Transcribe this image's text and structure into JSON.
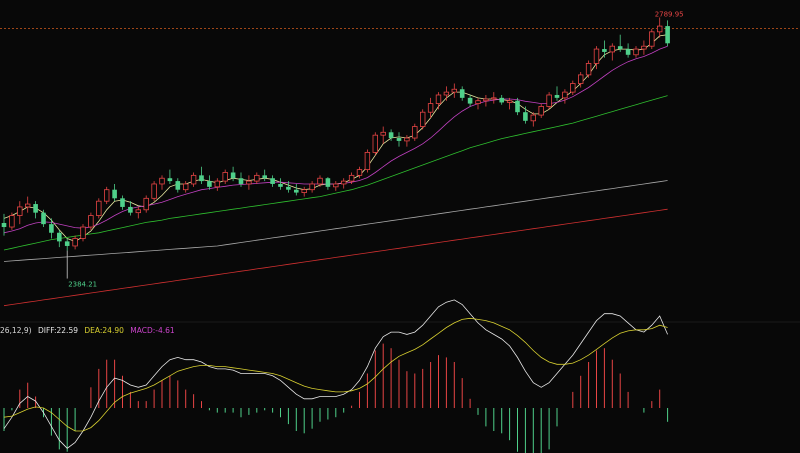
{
  "chart_data": [
    {
      "type": "candlestick",
      "panel": "price",
      "annotations": {
        "high_label": "2789.95",
        "low_label": "2384.21"
      },
      "reference_line_value": 2771,
      "y_range_approx": [
        2270,
        2810
      ],
      "candles": [
        [
          2432,
          2448,
          2410,
          2425
        ],
        [
          2425,
          2450,
          2420,
          2445
        ],
        [
          2445,
          2470,
          2430,
          2460
        ],
        [
          2460,
          2478,
          2450,
          2465
        ],
        [
          2465,
          2470,
          2440,
          2450
        ],
        [
          2450,
          2455,
          2425,
          2430
        ],
        [
          2430,
          2440,
          2405,
          2415
        ],
        [
          2415,
          2420,
          2390,
          2400
        ],
        [
          2400,
          2405,
          2384,
          2392
        ],
        [
          2392,
          2410,
          2386,
          2405
        ],
        [
          2405,
          2430,
          2400,
          2425
        ],
        [
          2425,
          2450,
          2420,
          2445
        ],
        [
          2445,
          2475,
          2440,
          2470
        ],
        [
          2470,
          2495,
          2465,
          2490
        ],
        [
          2490,
          2500,
          2470,
          2475
        ],
        [
          2475,
          2480,
          2455,
          2460
        ],
        [
          2460,
          2470,
          2445,
          2450
        ],
        [
          2450,
          2460,
          2440,
          2455
        ],
        [
          2455,
          2480,
          2450,
          2475
        ],
        [
          2475,
          2505,
          2470,
          2500
        ],
        [
          2500,
          2515,
          2490,
          2510
        ],
        [
          2510,
          2525,
          2500,
          2505
        ],
        [
          2505,
          2510,
          2485,
          2490
        ],
        [
          2490,
          2505,
          2485,
          2500
        ],
        [
          2500,
          2520,
          2495,
          2515
        ],
        [
          2515,
          2530,
          2500,
          2505
        ],
        [
          2505,
          2515,
          2490,
          2495
        ],
        [
          2495,
          2510,
          2488,
          2505
        ],
        [
          2505,
          2525,
          2500,
          2520
        ],
        [
          2520,
          2530,
          2505,
          2510
        ],
        [
          2510,
          2520,
          2495,
          2500
        ],
        [
          2500,
          2515,
          2490,
          2505
        ],
        [
          2505,
          2520,
          2500,
          2515
        ],
        [
          2515,
          2525,
          2505,
          2510
        ],
        [
          2510,
          2515,
          2495,
          2500
        ],
        [
          2500,
          2510,
          2490,
          2495
        ],
        [
          2495,
          2505,
          2485,
          2490
        ],
        [
          2490,
          2500,
          2480,
          2485
        ],
        [
          2485,
          2495,
          2478,
          2490
        ],
        [
          2490,
          2505,
          2485,
          2500
        ],
        [
          2500,
          2515,
          2495,
          2510
        ],
        [
          2510,
          2512,
          2490,
          2495
        ],
        [
          2495,
          2505,
          2488,
          2500
        ],
        [
          2500,
          2510,
          2492,
          2505
        ],
        [
          2505,
          2520,
          2500,
          2515
        ],
        [
          2515,
          2530,
          2510,
          2525
        ],
        [
          2525,
          2560,
          2520,
          2555
        ],
        [
          2555,
          2590,
          2550,
          2585
        ],
        [
          2585,
          2600,
          2570,
          2590
        ],
        [
          2590,
          2595,
          2575,
          2580
        ],
        [
          2580,
          2590,
          2565,
          2575
        ],
        [
          2575,
          2585,
          2565,
          2580
        ],
        [
          2580,
          2605,
          2575,
          2600
        ],
        [
          2600,
          2630,
          2595,
          2625
        ],
        [
          2625,
          2650,
          2615,
          2640
        ],
        [
          2640,
          2660,
          2630,
          2655
        ],
        [
          2655,
          2670,
          2645,
          2660
        ],
        [
          2660,
          2675,
          2650,
          2665
        ],
        [
          2665,
          2670,
          2645,
          2650
        ],
        [
          2650,
          2655,
          2635,
          2640
        ],
        [
          2640,
          2650,
          2630,
          2645
        ],
        [
          2645,
          2655,
          2635,
          2648
        ],
        [
          2648,
          2660,
          2640,
          2650
        ],
        [
          2650,
          2655,
          2638,
          2642
        ],
        [
          2642,
          2650,
          2630,
          2645
        ],
        [
          2645,
          2650,
          2620,
          2625
        ],
        [
          2625,
          2635,
          2605,
          2610
        ],
        [
          2610,
          2625,
          2600,
          2620
        ],
        [
          2620,
          2640,
          2615,
          2635
        ],
        [
          2635,
          2660,
          2630,
          2655
        ],
        [
          2655,
          2670,
          2645,
          2650
        ],
        [
          2650,
          2665,
          2640,
          2660
        ],
        [
          2660,
          2680,
          2655,
          2675
        ],
        [
          2675,
          2695,
          2668,
          2690
        ],
        [
          2690,
          2715,
          2685,
          2710
        ],
        [
          2710,
          2740,
          2700,
          2735
        ],
        [
          2735,
          2750,
          2720,
          2730
        ],
        [
          2730,
          2745,
          2715,
          2740
        ],
        [
          2740,
          2760,
          2730,
          2735
        ],
        [
          2735,
          2745,
          2720,
          2725
        ],
        [
          2725,
          2740,
          2720,
          2735
        ],
        [
          2735,
          2750,
          2725,
          2740
        ],
        [
          2740,
          2770,
          2735,
          2765
        ],
        [
          2765,
          2790,
          2755,
          2775
        ],
        [
          2775,
          2785,
          2740,
          2745
        ]
      ],
      "moving_averages": [
        {
          "color": "#e8e8a0",
          "values": [
            2440,
            2445,
            2452,
            2460,
            2458,
            2450,
            2437,
            2420,
            2405,
            2400,
            2408,
            2418,
            2435,
            2455,
            2470,
            2472,
            2468,
            2462,
            2460,
            2468,
            2480,
            2495,
            2500,
            2500,
            2505,
            2508,
            2505,
            2502,
            2506,
            2510,
            2508,
            2506,
            2508,
            2510,
            2508,
            2503,
            2498,
            2493,
            2490,
            2492,
            2498,
            2500,
            2500,
            2502,
            2508,
            2515,
            2530,
            2550,
            2570,
            2580,
            2582,
            2580,
            2585,
            2598,
            2615,
            2635,
            2650,
            2660,
            2660,
            2655,
            2650,
            2648,
            2648,
            2647,
            2645,
            2640,
            2630,
            2622,
            2622,
            2630,
            2642,
            2652,
            2662,
            2675,
            2690,
            2710,
            2725,
            2732,
            2735,
            2735,
            2733,
            2735,
            2745,
            2758,
            2760
          ]
        },
        {
          "color": "#c040c0",
          "values": [
            2415,
            2418,
            2422,
            2428,
            2432,
            2434,
            2433,
            2430,
            2427,
            2424,
            2423,
            2425,
            2430,
            2437,
            2445,
            2452,
            2457,
            2460,
            2462,
            2465,
            2468,
            2473,
            2478,
            2482,
            2486,
            2490,
            2492,
            2494,
            2496,
            2498,
            2499,
            2500,
            2501,
            2502,
            2503,
            2503,
            2502,
            2501,
            2500,
            2500,
            2500,
            2500,
            2500,
            2501,
            2503,
            2506,
            2511,
            2520,
            2530,
            2540,
            2548,
            2555,
            2562,
            2570,
            2580,
            2592,
            2605,
            2617,
            2627,
            2635,
            2640,
            2644,
            2646,
            2648,
            2648,
            2647,
            2644,
            2642,
            2640,
            2640,
            2642,
            2646,
            2652,
            2660,
            2668,
            2678,
            2688,
            2698,
            2706,
            2713,
            2718,
            2722,
            2728,
            2735,
            2740
          ]
        },
        {
          "color": "#2fbf2f",
          "values": [
            2385,
            2388,
            2391,
            2394,
            2397,
            2400,
            2403,
            2405,
            2407,
            2409,
            2411,
            2413,
            2415,
            2418,
            2421,
            2424,
            2427,
            2430,
            2433,
            2435,
            2437,
            2440,
            2442,
            2444,
            2446,
            2448,
            2450,
            2452,
            2454,
            2456,
            2458,
            2460,
            2462,
            2464,
            2466,
            2468,
            2470,
            2472,
            2474,
            2476,
            2478,
            2481,
            2484,
            2487,
            2490,
            2494,
            2498,
            2503,
            2508,
            2513,
            2518,
            2523,
            2528,
            2533,
            2538,
            2543,
            2548,
            2553,
            2558,
            2563,
            2567,
            2571,
            2575,
            2579,
            2582,
            2585,
            2588,
            2591,
            2594,
            2597,
            2600,
            2603,
            2606,
            2610,
            2614,
            2618,
            2622,
            2626,
            2630,
            2634,
            2638,
            2642,
            2646,
            2650,
            2654
          ]
        },
        {
          "color": "#a8a8a8",
          "values": [
            2365,
            2366,
            2367,
            2368,
            2369,
            2370,
            2371,
            2372,
            2373,
            2374,
            2375,
            2376,
            2377,
            2378,
            2379,
            2380,
            2381,
            2382,
            2383,
            2384,
            2385,
            2386,
            2387,
            2388,
            2389,
            2390,
            2391,
            2392,
            2394,
            2396,
            2398,
            2400,
            2402,
            2404,
            2406,
            2408,
            2410,
            2412,
            2414,
            2416,
            2418,
            2420,
            2422,
            2424,
            2426,
            2428,
            2430,
            2432,
            2434,
            2436,
            2438,
            2440,
            2442,
            2444,
            2446,
            2448,
            2450,
            2452,
            2454,
            2456,
            2458,
            2460,
            2462,
            2464,
            2466,
            2468,
            2470,
            2472,
            2474,
            2476,
            2478,
            2480,
            2482,
            2484,
            2486,
            2488,
            2490,
            2492,
            2494,
            2496,
            2498,
            2500,
            2502,
            2504,
            2506
          ]
        },
        {
          "color": "#d03030",
          "values": [
            2288,
            2290,
            2292,
            2294,
            2296,
            2298,
            2300,
            2302,
            2304,
            2306,
            2308,
            2310,
            2312,
            2314,
            2316,
            2318,
            2320,
            2322,
            2324,
            2326,
            2328,
            2330,
            2332,
            2334,
            2336,
            2338,
            2340,
            2342,
            2344,
            2346,
            2348,
            2350,
            2352,
            2354,
            2356,
            2358,
            2360,
            2362,
            2364,
            2366,
            2368,
            2370,
            2372,
            2374,
            2376,
            2378,
            2380,
            2382,
            2384,
            2386,
            2388,
            2390,
            2392,
            2394,
            2396,
            2398,
            2400,
            2402,
            2404,
            2406,
            2408,
            2410,
            2412,
            2414,
            2416,
            2418,
            2420,
            2422,
            2424,
            2426,
            2428,
            2430,
            2432,
            2434,
            2436,
            2438,
            2440,
            2442,
            2444,
            2446,
            2448,
            2450,
            2452,
            2454,
            2456
          ]
        }
      ]
    },
    {
      "type": "macd",
      "panel": "indicator",
      "legend": {
        "params": "26,12,9)",
        "diff": "DIFF:22.59",
        "dea": "DEA:24.90",
        "macd": "MACD:-4.61"
      },
      "diff": [
        -18,
        -8,
        4,
        10,
        6,
        -4,
        -16,
        -28,
        -35,
        -30,
        -20,
        -8,
        6,
        18,
        26,
        24,
        20,
        18,
        20,
        28,
        36,
        42,
        44,
        42,
        42,
        40,
        36,
        34,
        34,
        33,
        30,
        30,
        30,
        30,
        28,
        24,
        18,
        12,
        8,
        8,
        10,
        10,
        10,
        12,
        16,
        24,
        36,
        52,
        62,
        66,
        66,
        64,
        66,
        72,
        80,
        88,
        92,
        94,
        90,
        82,
        74,
        68,
        64,
        60,
        54,
        44,
        32,
        22,
        18,
        22,
        30,
        38,
        46,
        56,
        66,
        76,
        82,
        82,
        80,
        74,
        68,
        66,
        72,
        80,
        64
      ],
      "dea": [
        -8,
        -7,
        -4,
        -1,
        1,
        0,
        -4,
        -10,
        -16,
        -20,
        -20,
        -17,
        -11,
        -3,
        5,
        10,
        13,
        15,
        17,
        20,
        24,
        28,
        32,
        34,
        36,
        37,
        37,
        36,
        36,
        35,
        34,
        33,
        32,
        31,
        30,
        28,
        25,
        22,
        19,
        17,
        16,
        15,
        14,
        14,
        15,
        17,
        21,
        27,
        34,
        40,
        45,
        48,
        51,
        55,
        60,
        65,
        70,
        74,
        77,
        78,
        77,
        76,
        74,
        71,
        68,
        63,
        57,
        50,
        44,
        40,
        38,
        38,
        39,
        42,
        46,
        51,
        56,
        61,
        65,
        67,
        68,
        68,
        69,
        72,
        70
      ],
      "hist": [
        -20,
        -2,
        16,
        22,
        10,
        -8,
        -24,
        -36,
        -38,
        -20,
        0,
        18,
        34,
        42,
        42,
        28,
        14,
        6,
        6,
        16,
        24,
        28,
        24,
        16,
        12,
        6,
        -2,
        -4,
        -4,
        -4,
        -8,
        -6,
        -4,
        -2,
        -4,
        -8,
        -14,
        -20,
        -22,
        -18,
        -12,
        -10,
        -8,
        -4,
        2,
        14,
        30,
        50,
        56,
        52,
        42,
        32,
        30,
        34,
        40,
        46,
        44,
        40,
        26,
        8,
        -6,
        -16,
        -20,
        -22,
        -28,
        -38,
        -50,
        -56,
        -52,
        -36,
        -16,
        0,
        14,
        28,
        40,
        50,
        52,
        42,
        30,
        14,
        0,
        -4,
        6,
        16,
        -12
      ]
    }
  ]
}
